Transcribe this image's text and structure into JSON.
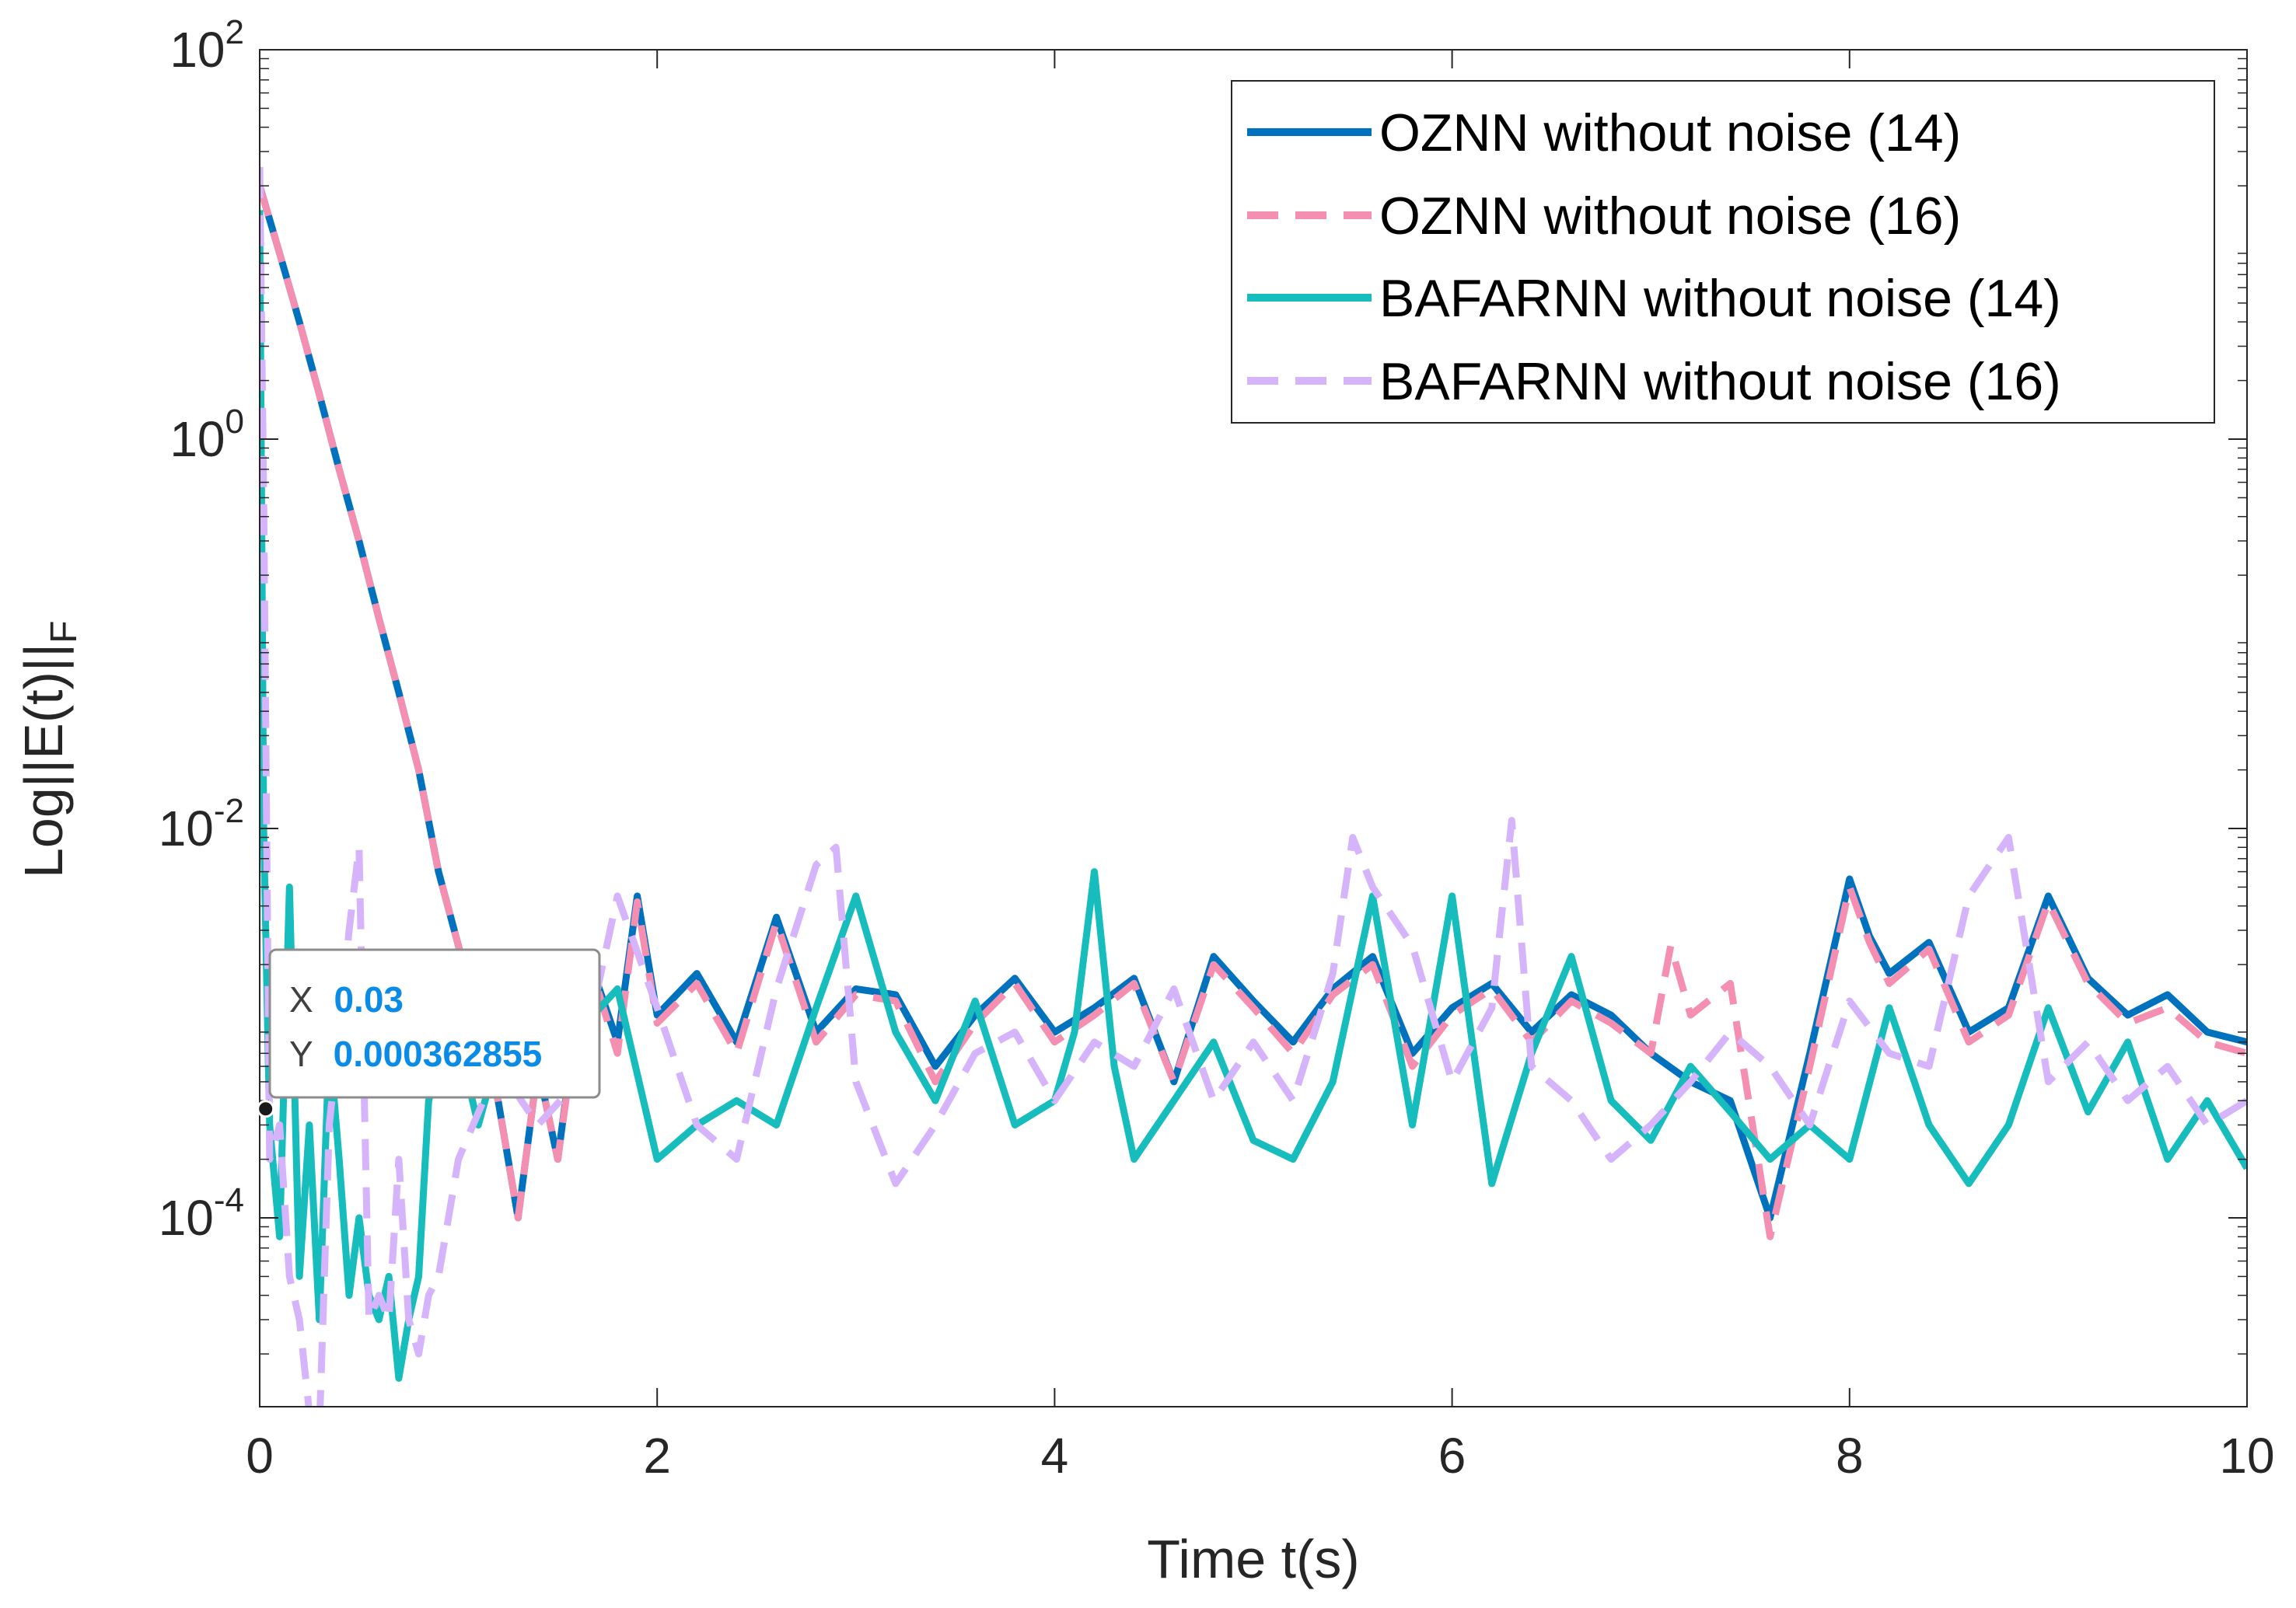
{
  "chart_data": {
    "type": "line",
    "title": "",
    "xlabel": "Time t(s)",
    "ylabel": {
      "main": "Log||E(t)||",
      "sub": "F"
    },
    "xlim": [
      0,
      10
    ],
    "ylim_log10": [
      -4.97,
      2
    ],
    "y_scale": "log",
    "x_ticks": [
      0,
      2,
      4,
      6,
      8,
      10
    ],
    "x_tick_labels": [
      "0",
      "2",
      "4",
      "6",
      "8",
      "10"
    ],
    "y_ticks_exp": [
      -4,
      -2,
      0,
      2
    ],
    "y_tick_base": "10",
    "y_tick_exps": [
      "-4",
      "-2",
      "0",
      "2"
    ],
    "grid": false,
    "legend_position": "top-right",
    "series": [
      {
        "name": "OZNN without noise (14)",
        "color": "#0072BD",
        "style": "solid",
        "x": [
          0.0,
          0.1,
          0.2,
          0.3,
          0.4,
          0.5,
          0.6,
          0.7,
          0.8,
          0.9,
          1.0,
          1.1,
          1.2,
          1.3,
          1.4,
          1.5,
          1.6,
          1.7,
          1.8,
          1.9,
          2.0,
          2.2,
          2.4,
          2.6,
          2.8,
          3.0,
          3.2,
          3.4,
          3.6,
          3.8,
          4.0,
          4.2,
          4.4,
          4.6,
          4.8,
          5.0,
          5.2,
          5.4,
          5.6,
          5.8,
          6.0,
          6.2,
          6.4,
          6.6,
          6.8,
          7.0,
          7.2,
          7.4,
          7.6,
          7.8,
          8.0,
          8.1,
          8.2,
          8.4,
          8.6,
          8.8,
          9.0,
          9.2,
          9.4,
          9.6,
          9.8,
          10.0
        ],
        "y": [
          20,
          9,
          4,
          1.7,
          0.7,
          0.3,
          0.12,
          0.05,
          0.02,
          0.006,
          0.0025,
          0.0009,
          0.0004,
          0.0001,
          0.0006,
          0.0002,
          0.0012,
          0.0016,
          0.0008,
          0.0045,
          0.0011,
          0.0018,
          0.0008,
          0.0035,
          0.0009,
          0.0015,
          0.0014,
          0.0006,
          0.0011,
          0.0017,
          0.0009,
          0.0012,
          0.0017,
          0.0005,
          0.0022,
          0.0013,
          0.0008,
          0.0015,
          0.0022,
          0.0007,
          0.0012,
          0.0016,
          0.0009,
          0.0014,
          0.0011,
          0.0007,
          0.0005,
          0.0004,
          0.0001,
          0.0007,
          0.0055,
          0.0028,
          0.0018,
          0.0026,
          0.0009,
          0.0012,
          0.0045,
          0.0017,
          0.0011,
          0.0014,
          0.0009,
          0.0008
        ]
      },
      {
        "name": "OZNN without noise (16)",
        "color": "#F48FB1",
        "style": "dashed",
        "x": [
          0.0,
          0.1,
          0.2,
          0.3,
          0.4,
          0.5,
          0.6,
          0.7,
          0.8,
          0.9,
          1.0,
          1.1,
          1.2,
          1.3,
          1.4,
          1.5,
          1.6,
          1.7,
          1.8,
          1.9,
          2.0,
          2.2,
          2.4,
          2.6,
          2.8,
          3.0,
          3.2,
          3.4,
          3.6,
          3.8,
          4.0,
          4.2,
          4.4,
          4.6,
          4.8,
          5.0,
          5.2,
          5.4,
          5.6,
          5.8,
          6.0,
          6.2,
          6.4,
          6.6,
          6.8,
          7.0,
          7.1,
          7.2,
          7.4,
          7.6,
          7.8,
          8.0,
          8.1,
          8.2,
          8.4,
          8.6,
          8.8,
          9.0,
          9.2,
          9.4,
          9.6,
          9.8,
          10.0
        ],
        "y": [
          20,
          9,
          4,
          1.7,
          0.7,
          0.3,
          0.12,
          0.05,
          0.02,
          0.006,
          0.0025,
          0.0009,
          0.0004,
          0.0001,
          0.0006,
          0.0002,
          0.0011,
          0.0015,
          0.0007,
          0.0042,
          0.001,
          0.0016,
          0.0007,
          0.0033,
          0.0008,
          0.0014,
          0.0013,
          0.0005,
          0.001,
          0.0016,
          0.0008,
          0.0011,
          0.0016,
          0.0005,
          0.002,
          0.0012,
          0.0007,
          0.0014,
          0.002,
          0.0006,
          0.0011,
          0.0015,
          0.0008,
          0.0013,
          0.001,
          0.0007,
          0.0025,
          0.0011,
          0.0016,
          8e-05,
          0.0006,
          0.005,
          0.0026,
          0.0016,
          0.0024,
          0.0008,
          0.0011,
          0.0042,
          0.0016,
          0.001,
          0.0012,
          0.0008,
          0.0007
        ]
      },
      {
        "name": "BAFARNN without noise (14)",
        "color": "#17BCBC",
        "style": "solid",
        "x": [
          0.0,
          0.02,
          0.05,
          0.1,
          0.15,
          0.2,
          0.25,
          0.3,
          0.35,
          0.4,
          0.45,
          0.5,
          0.55,
          0.6,
          0.65,
          0.7,
          0.75,
          0.8,
          0.85,
          0.9,
          1.0,
          1.1,
          1.2,
          1.4,
          1.6,
          1.8,
          2.0,
          2.2,
          2.4,
          2.6,
          2.8,
          3.0,
          3.2,
          3.4,
          3.6,
          3.8,
          4.0,
          4.1,
          4.2,
          4.3,
          4.4,
          4.6,
          4.8,
          5.0,
          5.2,
          5.4,
          5.6,
          5.8,
          6.0,
          6.2,
          6.4,
          6.6,
          6.8,
          7.0,
          7.2,
          7.4,
          7.6,
          7.8,
          8.0,
          8.2,
          8.4,
          8.6,
          8.8,
          9.0,
          9.2,
          9.4,
          9.6,
          9.8,
          10.0
        ],
        "y": [
          15,
          0.01,
          0.0003,
          8e-05,
          0.005,
          5e-05,
          0.0003,
          3e-05,
          0.0008,
          0.0002,
          4e-05,
          0.0001,
          4e-05,
          3e-05,
          5e-05,
          1.5e-05,
          3e-05,
          5e-05,
          0.0004,
          0.0006,
          0.0008,
          0.0003,
          0.0007,
          0.0005,
          0.0009,
          0.0015,
          0.0002,
          0.0003,
          0.0004,
          0.0003,
          0.0012,
          0.0045,
          0.0009,
          0.0004,
          0.0013,
          0.0003,
          0.0004,
          0.0009,
          0.006,
          0.0006,
          0.0002,
          0.0004,
          0.0008,
          0.00025,
          0.0002,
          0.0005,
          0.0045,
          0.0003,
          0.0045,
          0.00015,
          0.0007,
          0.0022,
          0.0004,
          0.00025,
          0.0006,
          0.00035,
          0.0002,
          0.0003,
          0.0002,
          0.0012,
          0.0003,
          0.00015,
          0.0003,
          0.0012,
          0.00035,
          0.0008,
          0.0002,
          0.0004,
          0.00018
        ]
      },
      {
        "name": "BAFARNN without noise (16)",
        "color": "#D6B4FB",
        "style": "dashed",
        "x": [
          0.0,
          0.02,
          0.05,
          0.1,
          0.15,
          0.2,
          0.25,
          0.3,
          0.35,
          0.4,
          0.45,
          0.5,
          0.55,
          0.6,
          0.65,
          0.7,
          0.75,
          0.8,
          0.85,
          0.9,
          1.0,
          1.2,
          1.4,
          1.6,
          1.8,
          2.0,
          2.2,
          2.4,
          2.6,
          2.8,
          2.9,
          3.0,
          3.2,
          3.4,
          3.6,
          3.8,
          4.0,
          4.2,
          4.4,
          4.6,
          4.8,
          5.0,
          5.2,
          5.4,
          5.5,
          5.6,
          5.8,
          6.0,
          6.2,
          6.3,
          6.4,
          6.6,
          6.8,
          7.0,
          7.2,
          7.4,
          7.6,
          7.8,
          8.0,
          8.2,
          8.4,
          8.6,
          8.8,
          9.0,
          9.2,
          9.4,
          9.6,
          9.8,
          10.0
        ],
        "y": [
          25,
          0.5,
          0.0002,
          0.0003,
          5e-05,
          3e-05,
          1e-05,
          8e-06,
          0.0003,
          0.0009,
          0.003,
          0.008,
          3e-05,
          4e-05,
          3e-05,
          0.0002,
          3e-05,
          2e-05,
          4e-05,
          5e-05,
          0.0002,
          0.0006,
          0.0003,
          0.0005,
          0.0045,
          0.0012,
          0.0003,
          0.0002,
          0.0015,
          0.0065,
          0.008,
          0.0005,
          0.00015,
          0.0003,
          0.0007,
          0.0009,
          0.0004,
          0.0008,
          0.0006,
          0.0015,
          0.0004,
          0.0008,
          0.0004,
          0.0018,
          0.009,
          0.005,
          0.0025,
          0.0005,
          0.0012,
          0.011,
          0.0006,
          0.0004,
          0.0002,
          0.0003,
          0.0005,
          0.0009,
          0.0006,
          0.0003,
          0.0013,
          0.0007,
          0.0006,
          0.0045,
          0.009,
          0.0005,
          0.0008,
          0.0004,
          0.0006,
          0.0003,
          0.0004
        ]
      }
    ],
    "datatip": {
      "x": 0.03,
      "y": 0.000362855,
      "x_label": "X",
      "y_label": "Y",
      "x_text": "0.03",
      "y_text": "0.000362855"
    }
  }
}
